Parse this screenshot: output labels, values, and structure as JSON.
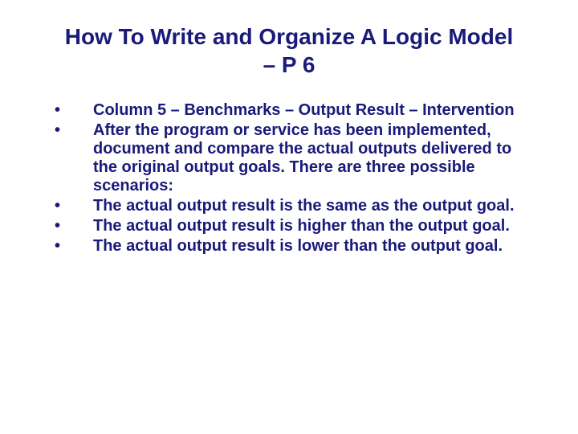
{
  "colors": {
    "text": "#1a1a7a",
    "background": "#ffffff"
  },
  "title": "How To Write and Organize A Logic Model – P 6",
  "bullets": [
    "Column 5 – Benchmarks – Output Result – Intervention",
    "After the program or service has been implemented, document and compare the actual outputs delivered to the original output goals. There are three possible scenarios:",
    "The actual output result is the same as the output goal.",
    "The actual output result is higher than the output goal.",
    "The actual output result is lower than the output goal."
  ],
  "typography": {
    "title_fontsize": 28,
    "body_fontsize": 20,
    "font_family": "Verdana",
    "font_weight": "bold"
  }
}
